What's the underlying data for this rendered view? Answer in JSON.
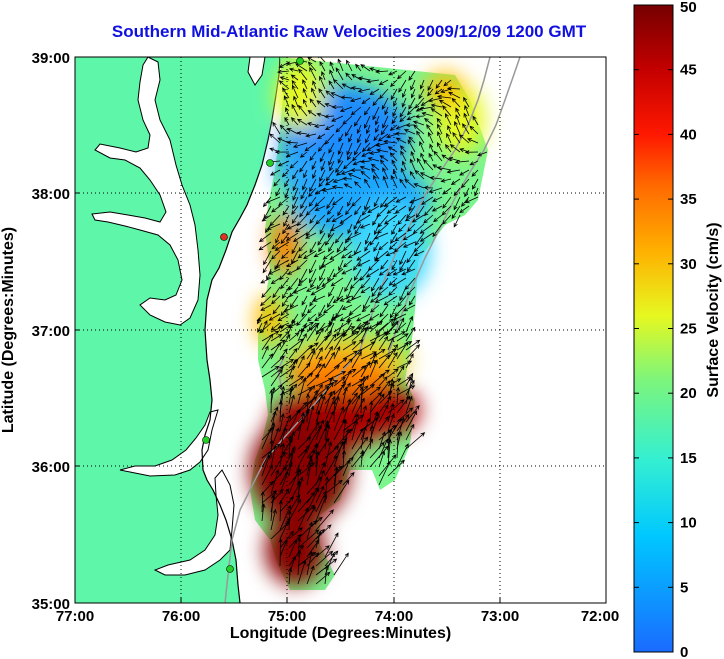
{
  "title": "Southern Mid-Atlantic Raw Velocities 2009/12/09 1200 GMT",
  "xlabel": "Longitude (Degrees:Minutes)",
  "ylabel": "Latitude (Degrees:Minutes)",
  "colorbar": {
    "label": "Surface Velocity (cm/s)",
    "ticks": [
      "0",
      "5",
      "10",
      "15",
      "20",
      "25",
      "30",
      "35",
      "40",
      "45",
      "50"
    ],
    "range": [
      0,
      50
    ]
  },
  "axes": {
    "x_ticks": [
      "77:00",
      "76:00",
      "75:00",
      "74:00",
      "73:00",
      "72:00"
    ],
    "y_ticks": [
      "39:00",
      "38:00",
      "37:00",
      "36:00",
      "35:00"
    ],
    "lon_range": [
      -77,
      -72
    ],
    "lat_range": [
      35,
      39
    ]
  },
  "colors": {
    "land": "#5ef7aa",
    "ocean": "#ffffff",
    "title": "#1010e0",
    "station_green": "#22d022",
    "station_red": "#e03020"
  },
  "chart_data": {
    "type": "heatmap",
    "title": "Southern Mid-Atlantic Raw Velocities 2009/12/09 1200 GMT",
    "xlabel": "Longitude (Degrees:Minutes)",
    "ylabel": "Latitude (Degrees:Minutes)",
    "xlim": [
      -77,
      -72
    ],
    "ylim": [
      35,
      39
    ],
    "value_label": "Surface Velocity (cm/s)",
    "value_range": [
      0,
      50
    ],
    "grid": true,
    "regions": [
      {
        "lon": -74.5,
        "lat": 38.4,
        "speed": 8
      },
      {
        "lon": -74.3,
        "lat": 37.5,
        "speed": 12
      },
      {
        "lon": -74.7,
        "lat": 37.0,
        "speed": 18
      },
      {
        "lon": -73.6,
        "lat": 38.3,
        "speed": 22
      },
      {
        "lon": -74.9,
        "lat": 38.7,
        "speed": 25
      },
      {
        "lon": -75.1,
        "lat": 37.6,
        "speed": 35
      },
      {
        "lon": -74.4,
        "lat": 36.5,
        "speed": 38
      },
      {
        "lon": -74.6,
        "lat": 36.1,
        "speed": 50
      },
      {
        "lon": -74.8,
        "lat": 35.4,
        "speed": 50
      }
    ],
    "stations": [
      {
        "lon": -74.8,
        "lat": 39.0,
        "color": "green"
      },
      {
        "lon": -75.1,
        "lat": 38.2,
        "color": "green"
      },
      {
        "lon": -75.5,
        "lat": 37.7,
        "color": "red"
      },
      {
        "lon": -75.6,
        "lat": 36.2,
        "color": "green"
      },
      {
        "lon": -75.5,
        "lat": 35.2,
        "color": "green"
      }
    ]
  }
}
